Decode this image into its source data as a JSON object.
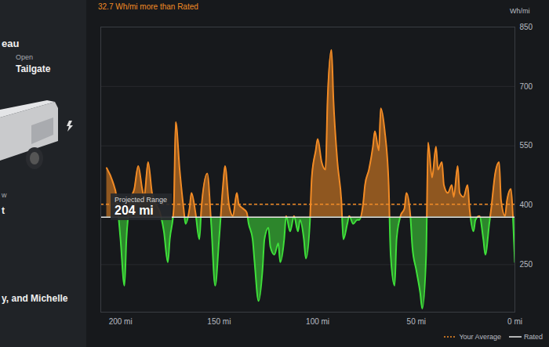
{
  "ui": {
    "vehicle_panel": {
      "name_fragment": "eau",
      "tailgate_state": "Open",
      "tailgate_label": "Tailgate",
      "fragments": [
        "w",
        "t"
      ],
      "footer": "y, and Michelle"
    }
  },
  "chart_data": {
    "type": "area",
    "title": "32.7 Wh/mi more than Rated",
    "ylabel": "Wh/mi",
    "projected_range": {
      "label": "Projected Range",
      "value": "204 mi"
    },
    "x": [
      207,
      204,
      202,
      200,
      198,
      197,
      195,
      193,
      191,
      189,
      188,
      186,
      184,
      183,
      180,
      178,
      176,
      175,
      173,
      172,
      170,
      168,
      167,
      165,
      164,
      162,
      160,
      159,
      156,
      154,
      152,
      150,
      148,
      147,
      145,
      143,
      141,
      140,
      138,
      136,
      135,
      133,
      132,
      130,
      128,
      127,
      125,
      124,
      122,
      120,
      119,
      117,
      116,
      114,
      112,
      110,
      109,
      107,
      106,
      104,
      103,
      101,
      100,
      98,
      96,
      95,
      93,
      92,
      90,
      88,
      87,
      85,
      84,
      82,
      80,
      79,
      77,
      76,
      74,
      72,
      71,
      69,
      68,
      66,
      64,
      63,
      61,
      60,
      58,
      56,
      55,
      53,
      52,
      50,
      48,
      47,
      45,
      44,
      42,
      40,
      39,
      37,
      36,
      34,
      32,
      31,
      29,
      28,
      26,
      24,
      23,
      21,
      20,
      18,
      16,
      15,
      13,
      12,
      10,
      8,
      7,
      5,
      4,
      2,
      1,
      0
    ],
    "values": [
      494,
      460,
      421,
      314,
      197,
      314,
      412,
      441,
      499,
      441,
      421,
      509,
      431,
      412,
      382,
      334,
      256,
      314,
      392,
      610,
      490,
      392,
      353,
      392,
      431,
      382,
      314,
      392,
      480,
      353,
      197,
      314,
      451,
      499,
      402,
      373,
      431,
      402,
      392,
      382,
      353,
      314,
      256,
      158,
      236,
      314,
      343,
      295,
      275,
      304,
      256,
      314,
      373,
      334,
      373,
      334,
      363,
      314,
      265,
      353,
      470,
      538,
      567,
      509,
      490,
      665,
      792,
      665,
      509,
      412,
      314,
      353,
      373,
      353,
      363,
      363,
      402,
      451,
      490,
      548,
      587,
      538,
      645,
      587,
      451,
      275,
      197,
      314,
      373,
      392,
      431,
      373,
      295,
      236,
      178,
      139,
      275,
      558,
      470,
      548,
      490,
      509,
      451,
      431,
      451,
      421,
      499,
      431,
      421,
      451,
      392,
      334,
      363,
      373,
      314,
      275,
      353,
      392,
      480,
      509,
      412,
      373,
      412,
      441,
      373,
      256
    ],
    "colors": [
      "#f28b25",
      "#3fe03a"
    ],
    "reference_lines": [
      {
        "name": "Your Average",
        "value": 402.7,
        "color": "#f28b25",
        "line_style": "dashed"
      },
      {
        "name": "Rated",
        "value": 370,
        "color": "#e8e8e8",
        "line_style": "solid"
      }
    ],
    "xlim": [
      210,
      0
    ],
    "xticks": [
      {
        "value": 200,
        "label": "200 mi"
      },
      {
        "value": 150,
        "label": "150 mi"
      },
      {
        "value": 100,
        "label": "100 mi"
      },
      {
        "value": 50,
        "label": "50 mi"
      },
      {
        "value": 0,
        "label": "0 mi"
      }
    ],
    "ylim": [
      130,
      850
    ],
    "yticks": [
      250,
      400,
      550,
      700,
      850
    ],
    "grid": true,
    "legend": "bottom-right"
  }
}
